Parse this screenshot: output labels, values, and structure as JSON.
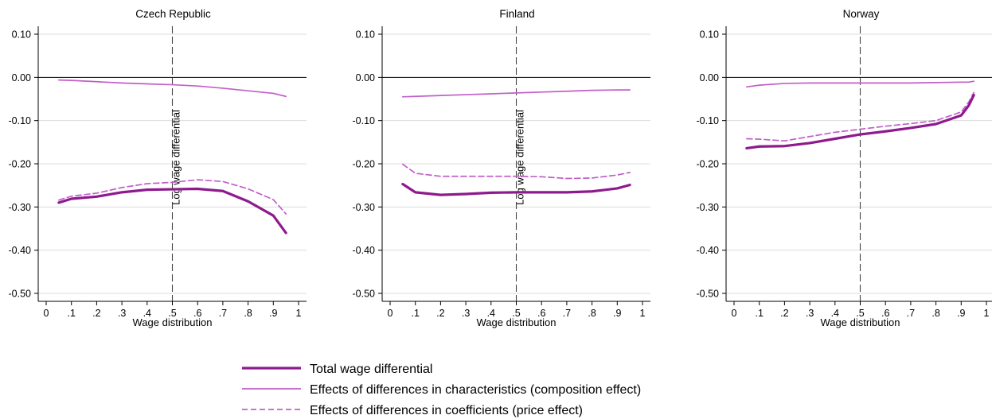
{
  "legend": [
    {
      "label": "Total wage differential",
      "style": "thick-solid",
      "color": "#8e1a8e"
    },
    {
      "label": "Effects of differences in characteristics (composition effect)",
      "style": "thin-solid",
      "color": "#c060c8"
    },
    {
      "label": "Effects of differences in coefficients (price effect)",
      "style": "dashed",
      "color": "#c060c8"
    }
  ],
  "chart_data": [
    {
      "type": "line",
      "title": "Czech Republic",
      "xlabel": "Wage distribution",
      "ylabel": "",
      "xlim": [
        0,
        1
      ],
      "ylim": [
        -0.5,
        0.1
      ],
      "xticks": [
        "0",
        ".1",
        ".2",
        ".3",
        ".4",
        ".5",
        ".6",
        ".7",
        ".8",
        ".9",
        "1"
      ],
      "yticks": [
        "0.10",
        "0.00",
        "-0.10",
        "-0.20",
        "-0.30",
        "-0.40",
        "-0.50"
      ],
      "vline": {
        "x": 0.5,
        "label": "Log wage differential"
      },
      "grid": "horizontal",
      "x": [
        0.05,
        0.1,
        0.2,
        0.3,
        0.4,
        0.5,
        0.6,
        0.7,
        0.8,
        0.9,
        0.95
      ],
      "series": [
        {
          "name": "Total wage differential",
          "values": [
            -0.29,
            -0.281,
            -0.276,
            -0.266,
            -0.26,
            -0.259,
            -0.258,
            -0.263,
            -0.287,
            -0.32,
            -0.36
          ]
        },
        {
          "name": "Effects of differences in characteristics (composition effect)",
          "values": [
            -0.006,
            -0.007,
            -0.01,
            -0.013,
            -0.015,
            -0.017,
            -0.02,
            -0.025,
            -0.031,
            -0.037,
            -0.044
          ]
        },
        {
          "name": "Effects of differences in coefficients (price effect)",
          "values": [
            -0.284,
            -0.275,
            -0.268,
            -0.255,
            -0.246,
            -0.243,
            -0.237,
            -0.241,
            -0.258,
            -0.283,
            -0.316
          ]
        }
      ]
    },
    {
      "type": "line",
      "title": "Finland",
      "xlabel": "Wage distribution",
      "ylabel": "",
      "xlim": [
        0,
        1
      ],
      "ylim": [
        -0.5,
        0.1
      ],
      "xticks": [
        "0",
        ".1",
        ".2",
        ".3",
        ".4",
        ".5",
        ".6",
        ".7",
        ".8",
        ".9",
        "1"
      ],
      "yticks": [
        "0.10",
        "0.00",
        "-0.10",
        "-0.20",
        "-0.30",
        "-0.40",
        "-0.50"
      ],
      "vline": {
        "x": 0.5,
        "label": "Log wage differential"
      },
      "grid": "horizontal",
      "x": [
        0.05,
        0.1,
        0.2,
        0.3,
        0.4,
        0.5,
        0.6,
        0.7,
        0.8,
        0.9,
        0.95
      ],
      "series": [
        {
          "name": "Total wage differential",
          "values": [
            -0.247,
            -0.266,
            -0.272,
            -0.27,
            -0.267,
            -0.266,
            -0.266,
            -0.266,
            -0.264,
            -0.257,
            -0.249
          ]
        },
        {
          "name": "Effects of differences in characteristics (composition effect)",
          "values": [
            -0.045,
            -0.044,
            -0.042,
            -0.04,
            -0.038,
            -0.036,
            -0.034,
            -0.032,
            -0.03,
            -0.029,
            -0.029
          ]
        },
        {
          "name": "Effects of differences in coefficients (price effect)",
          "values": [
            -0.201,
            -0.222,
            -0.229,
            -0.229,
            -0.229,
            -0.229,
            -0.23,
            -0.234,
            -0.233,
            -0.226,
            -0.22
          ]
        }
      ]
    },
    {
      "type": "line",
      "title": "Norway",
      "xlabel": "Wage distribution",
      "ylabel": "",
      "xlim": [
        0,
        1
      ],
      "ylim": [
        -0.5,
        0.1
      ],
      "xticks": [
        "0",
        ".1",
        ".2",
        ".3",
        ".4",
        ".5",
        ".6",
        ".7",
        ".8",
        ".9",
        "1"
      ],
      "yticks": [
        "0.10",
        "0.00",
        "-0.10",
        "-0.20",
        "-0.30",
        "-0.40",
        "-0.50"
      ],
      "vline": {
        "x": 0.5,
        "label": ""
      },
      "grid": "horizontal",
      "x": [
        0.05,
        0.1,
        0.2,
        0.3,
        0.4,
        0.5,
        0.6,
        0.7,
        0.8,
        0.9,
        0.93,
        0.95
      ],
      "series": [
        {
          "name": "Total wage differential",
          "values": [
            -0.164,
            -0.16,
            -0.159,
            -0.152,
            -0.142,
            -0.132,
            -0.125,
            -0.117,
            -0.108,
            -0.088,
            -0.065,
            -0.041
          ]
        },
        {
          "name": "Effects of differences in characteristics (composition effect)",
          "values": [
            -0.022,
            -0.018,
            -0.014,
            -0.013,
            -0.013,
            -0.013,
            -0.013,
            -0.013,
            -0.012,
            -0.011,
            -0.011,
            -0.009
          ]
        },
        {
          "name": "Effects of differences in coefficients (price effect)",
          "values": [
            -0.142,
            -0.143,
            -0.147,
            -0.137,
            -0.127,
            -0.12,
            -0.113,
            -0.107,
            -0.1,
            -0.08,
            -0.057,
            -0.035
          ]
        }
      ]
    }
  ]
}
